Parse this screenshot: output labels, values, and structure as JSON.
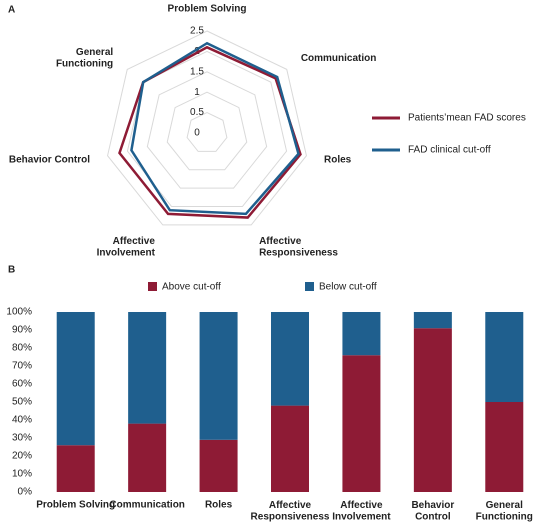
{
  "chart_data": [
    {
      "type": "radar",
      "label": "A",
      "categories": [
        "Problem Solving",
        "Communication",
        "Roles",
        "Affective\nResponsiveness",
        "Affective\nInvolvement",
        "Behavior Control",
        "General\nFunctioning"
      ],
      "series": [
        {
          "name": "Patients’mean FAD scores",
          "color": "#8e1b35",
          "values": [
            2.1,
            2.15,
            2.35,
            2.3,
            2.2,
            2.2,
            2.0
          ]
        },
        {
          "name": "FAD clinical cut-off",
          "color": "#1f5f8e",
          "values": [
            2.2,
            2.2,
            2.3,
            2.2,
            2.1,
            1.9,
            2.0
          ]
        }
      ],
      "ylim": [
        0,
        2.5
      ],
      "yticks": [
        0,
        0.5,
        1,
        1.5,
        2,
        2.5
      ],
      "grid": true,
      "legend": "right"
    },
    {
      "type": "stacked_bar",
      "label": "B",
      "categories": [
        "Problem Solving",
        "Communication",
        "Roles",
        "Affective\nResponsiveness",
        "Affective\nInvolvement",
        "Behavior\nControl",
        "General\nFunctioning"
      ],
      "series": [
        {
          "name": "Above cut-off",
          "color": "#8e1b35",
          "values": [
            26,
            38,
            29,
            48,
            76,
            91,
            50
          ]
        },
        {
          "name": "Below cut-off",
          "color": "#1f5f8e",
          "values": [
            74,
            62,
            71,
            52,
            24,
            9,
            50
          ]
        }
      ],
      "ylim": [
        0,
        100
      ],
      "yticks": [
        {
          "value": 0,
          "label": "0%"
        },
        {
          "value": 10,
          "label": "10%"
        },
        {
          "value": 20,
          "label": "20%"
        },
        {
          "value": 30,
          "label": "30%"
        },
        {
          "value": 40,
          "label": "40%"
        },
        {
          "value": 50,
          "label": "50%"
        },
        {
          "value": 60,
          "label": "60%"
        },
        {
          "value": 70,
          "label": "70%"
        },
        {
          "value": 80,
          "label": "80%"
        },
        {
          "value": 90,
          "label": "90%"
        },
        {
          "value": 100,
          "label": "100%"
        }
      ],
      "legend": "top"
    }
  ]
}
